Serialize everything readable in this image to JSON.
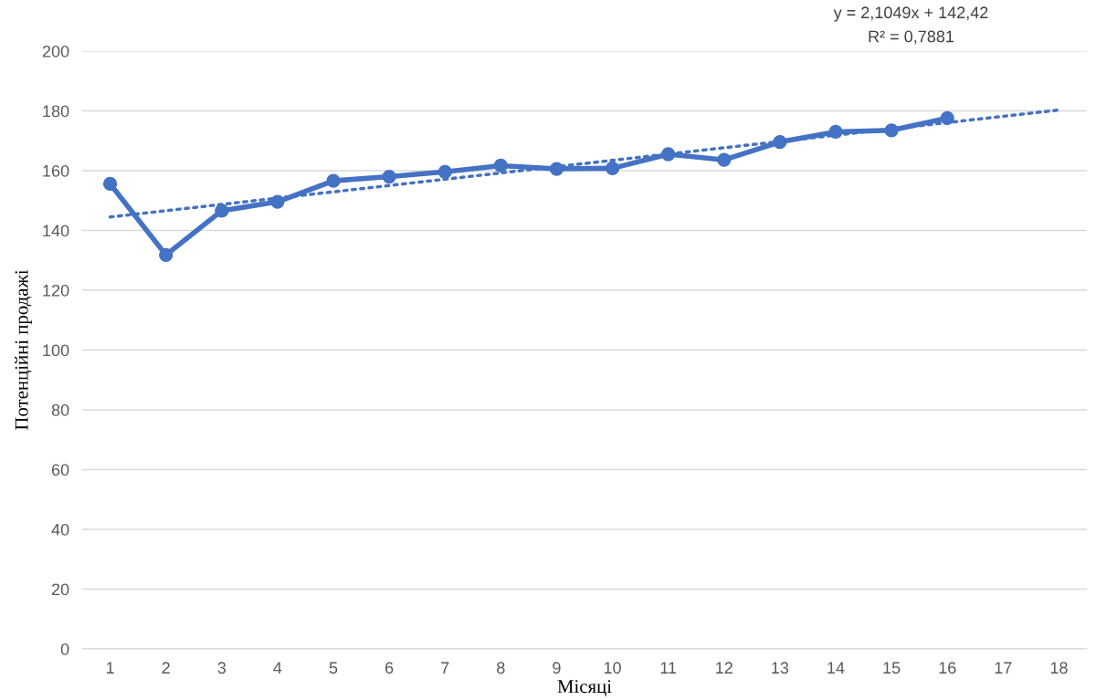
{
  "chart_data": {
    "type": "line",
    "xlabel": "Місяці",
    "ylabel": "Потенційні продажі",
    "x": [
      1,
      2,
      3,
      4,
      5,
      6,
      7,
      8,
      9,
      10,
      11,
      12,
      13,
      14,
      15,
      16
    ],
    "series": [
      {
        "color": "#4472c4",
        "marker": "circle",
        "line_style": "solid",
        "values": [
          155.6,
          131.8,
          146.6,
          149.6,
          156.6,
          158,
          159.6,
          161.7,
          160.6,
          160.8,
          165.5,
          163.6,
          169.6,
          173,
          173.5,
          177.6
        ]
      },
      {
        "type": "line",
        "color": "#4472c4",
        "marker": "none",
        "line_style": "dotted",
        "x": [
          1,
          18
        ],
        "values": [
          144.5,
          180.3
        ]
      }
    ],
    "annotations": [
      "y = 2,1049x + 142,42",
      "R² = 0,7881"
    ],
    "xlim": [
      0.5,
      18.5
    ],
    "xticks": [
      1,
      2,
      3,
      4,
      5,
      6,
      7,
      8,
      9,
      10,
      11,
      12,
      13,
      14,
      15,
      16,
      17,
      18
    ],
    "ylim": [
      0,
      200
    ],
    "yticks": [
      0,
      20,
      40,
      60,
      80,
      100,
      120,
      140,
      160,
      180,
      200
    ],
    "grid": "y",
    "legend": false
  }
}
